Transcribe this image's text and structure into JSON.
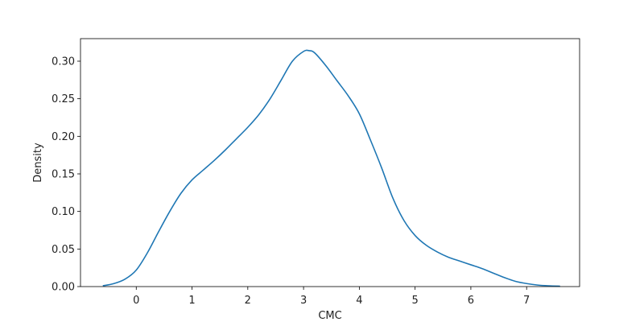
{
  "chart_data": {
    "type": "line",
    "title": "",
    "xlabel": "CMC",
    "ylabel": "Density",
    "xlim": [
      -1.0,
      7.95
    ],
    "ylim": [
      0,
      0.33
    ],
    "xticks": [
      0,
      1,
      2,
      3,
      4,
      5,
      6,
      7
    ],
    "yticks": [
      0.0,
      0.05,
      0.1,
      0.15,
      0.2,
      0.25,
      0.3
    ],
    "xtick_labels": [
      "0",
      "1",
      "2",
      "3",
      "4",
      "5",
      "6",
      "7"
    ],
    "ytick_labels": [
      "0.00",
      "0.05",
      "0.10",
      "0.15",
      "0.20",
      "0.25",
      "0.30"
    ],
    "grid": false,
    "legend": false,
    "series": [
      {
        "color": "#1f77b4",
        "x": [
          -0.6,
          -0.4,
          -0.2,
          0.0,
          0.2,
          0.4,
          0.6,
          0.8,
          1.0,
          1.2,
          1.4,
          1.6,
          1.8,
          2.0,
          2.2,
          2.4,
          2.6,
          2.8,
          3.0,
          3.1,
          3.2,
          3.4,
          3.6,
          3.8,
          4.0,
          4.2,
          4.4,
          4.6,
          4.8,
          5.0,
          5.2,
          5.4,
          5.6,
          5.8,
          6.0,
          6.2,
          6.4,
          6.6,
          6.8,
          7.0,
          7.2,
          7.4,
          7.6
        ],
        "y": [
          0.001,
          0.004,
          0.01,
          0.022,
          0.045,
          0.073,
          0.1,
          0.124,
          0.142,
          0.155,
          0.168,
          0.182,
          0.197,
          0.212,
          0.229,
          0.25,
          0.275,
          0.3,
          0.313,
          0.314,
          0.311,
          0.294,
          0.274,
          0.254,
          0.23,
          0.195,
          0.158,
          0.118,
          0.088,
          0.068,
          0.055,
          0.046,
          0.039,
          0.034,
          0.029,
          0.024,
          0.018,
          0.012,
          0.007,
          0.004,
          0.002,
          0.001,
          0.0005
        ]
      }
    ]
  }
}
